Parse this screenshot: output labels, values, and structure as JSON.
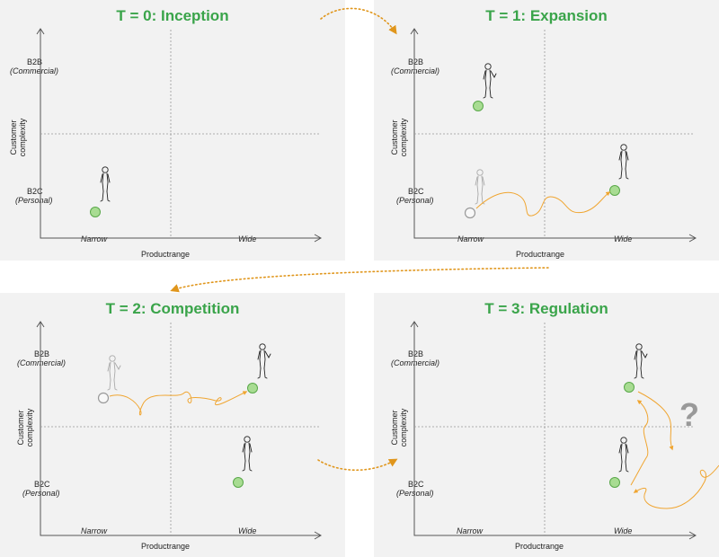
{
  "panels": [
    {
      "title": "T = 0: Inception"
    },
    {
      "title": "T = 1: Expansion"
    },
    {
      "title": "T = 2: Competition"
    },
    {
      "title": "T = 3: Regulation"
    }
  ],
  "axes": {
    "y_top": "B2B",
    "y_top_sub": "(Commercial)",
    "y_bottom": "B2C",
    "y_bottom_sub": "(Personal)",
    "y_title_1": "Customer",
    "y_title_2": "complexity",
    "x_left": "Narrow",
    "x_right": "Wide",
    "x_title": "Productrange"
  },
  "question_mark": "?",
  "colors": {
    "title_green": "#3aa44a",
    "dot_green": "#a8dc92",
    "path_orange": "#f0a530",
    "panel_bg": "#f2f2f2"
  }
}
